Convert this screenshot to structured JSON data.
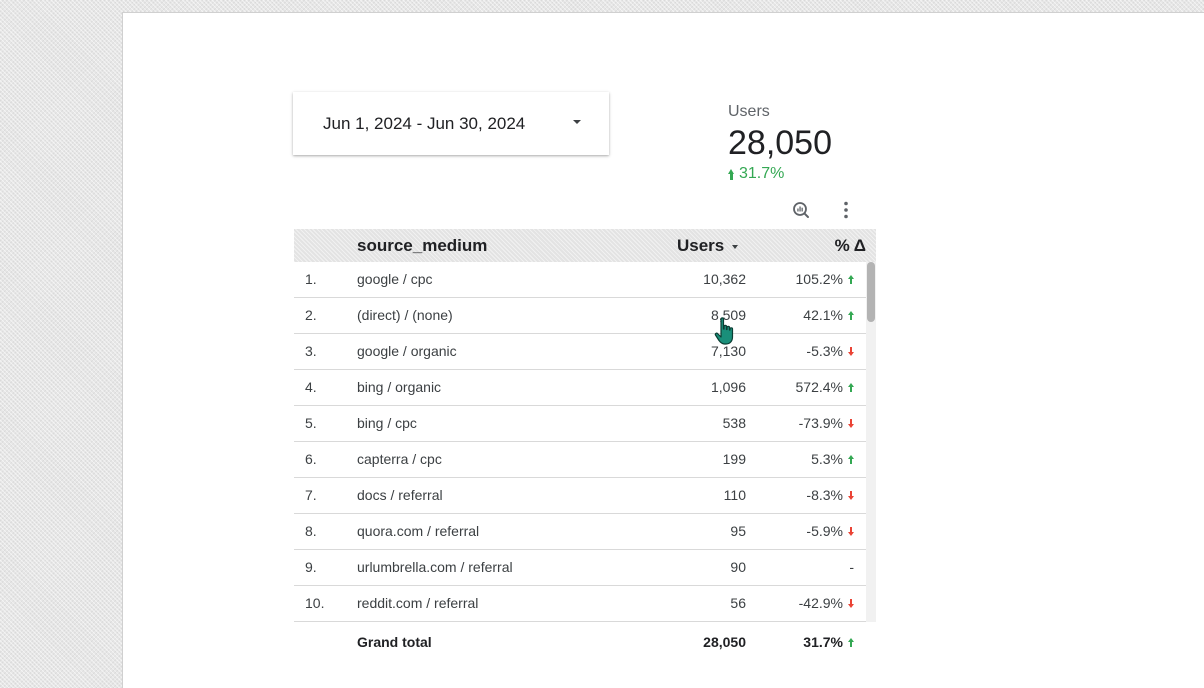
{
  "date_range": {
    "label": "Jun 1, 2024 - Jun 30, 2024"
  },
  "scorecard": {
    "label": "Users",
    "value": "28,050",
    "delta": "31.7%",
    "delta_direction": "up"
  },
  "toolbar": {
    "icons": [
      "explore-icon",
      "more-vert-icon"
    ]
  },
  "table": {
    "headers": {
      "source": "source_medium",
      "users": "Users",
      "delta": "% Δ"
    },
    "rows": [
      {
        "rank": "1.",
        "source": "google / cpc",
        "users": "10,362",
        "delta": "105.2%",
        "dir": "up"
      },
      {
        "rank": "2.",
        "source": "(direct) / (none)",
        "users": "8,509",
        "delta": "42.1%",
        "dir": "up"
      },
      {
        "rank": "3.",
        "source": "google / organic",
        "users": "7,130",
        "delta": "-5.3%",
        "dir": "down"
      },
      {
        "rank": "4.",
        "source": "bing / organic",
        "users": "1,096",
        "delta": "572.4%",
        "dir": "up"
      },
      {
        "rank": "5.",
        "source": "bing / cpc",
        "users": "538",
        "delta": "-73.9%",
        "dir": "down"
      },
      {
        "rank": "6.",
        "source": "capterra / cpc",
        "users": "199",
        "delta": "5.3%",
        "dir": "up"
      },
      {
        "rank": "7.",
        "source": "docs / referral",
        "users": "110",
        "delta": "-8.3%",
        "dir": "down"
      },
      {
        "rank": "8.",
        "source": "quora.com / referral",
        "users": "95",
        "delta": "-5.9%",
        "dir": "down"
      },
      {
        "rank": "9.",
        "source": "urlumbrella.com / referral",
        "users": "90",
        "delta": "-",
        "dir": "none"
      },
      {
        "rank": "10.",
        "source": "reddit.com / referral",
        "users": "56",
        "delta": "-42.9%",
        "dir": "down"
      }
    ],
    "total": {
      "label": "Grand total",
      "users": "28,050",
      "delta": "31.7%",
      "dir": "up"
    }
  },
  "colors": {
    "positive": "#34a853",
    "negative": "#ea4335",
    "header_bg": "#e3e3e3"
  }
}
